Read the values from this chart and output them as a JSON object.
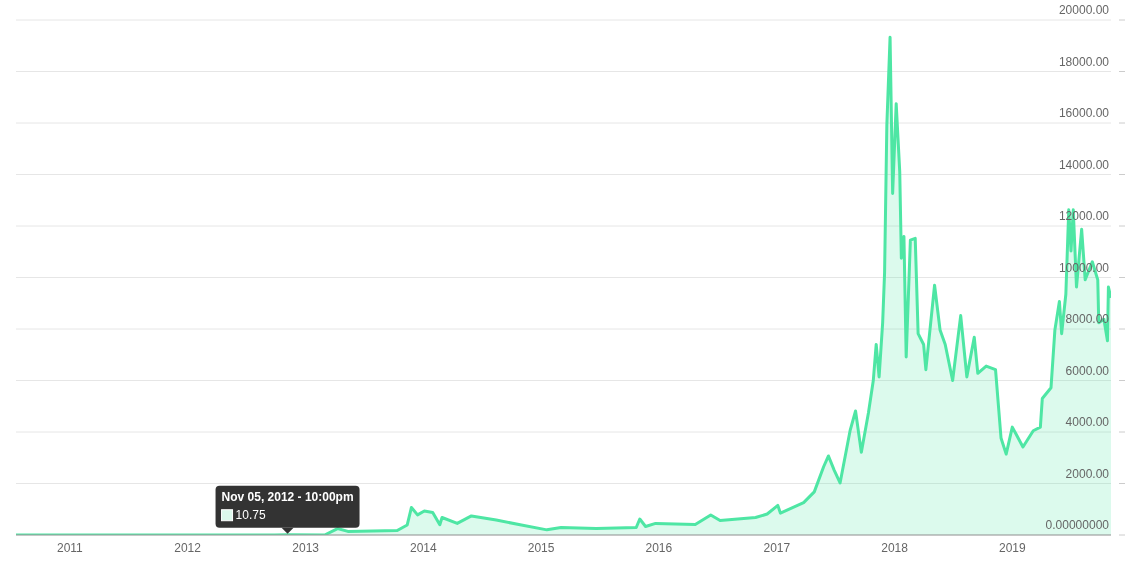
{
  "chart_data": {
    "type": "area",
    "x": [
      "2010-07-18",
      "2011-06-18",
      "2012-02-03",
      "2012-09-27",
      "2012-11-05T22:00",
      "2013-03-01",
      "2013-04-10",
      "2013-05-12",
      "2013-10-12",
      "2013-11-12",
      "2013-11-25",
      "2013-12-14",
      "2014-01-04",
      "2014-01-30",
      "2014-02-21",
      "2014-02-28",
      "2014-04-16",
      "2014-05-30",
      "2014-08-15",
      "2014-11-01",
      "2015-01-19",
      "2015-03-04",
      "2015-06-21",
      "2015-10-23",
      "2015-11-03",
      "2015-11-21",
      "2015-12-22",
      "2016-04-23",
      "2016-06-10",
      "2016-07-09",
      "2016-10-27",
      "2016-12-02",
      "2017-01-04",
      "2017-01-12",
      "2017-03-25",
      "2017-04-27",
      "2017-05-26",
      "2017-06-10",
      "2017-06-28",
      "2017-07-16",
      "2017-08-16",
      "2017-09-02",
      "2017-09-20",
      "2017-10-12",
      "2017-10-27",
      "2017-11-05",
      "2017-11-14",
      "2017-11-25",
      "2017-12-01",
      "2017-12-08",
      "2017-12-18",
      "2017-12-26",
      "2018-01-06",
      "2018-01-17",
      "2018-01-22",
      "2018-01-30",
      "2018-02-06",
      "2018-02-19",
      "2018-03-06",
      "2018-03-15",
      "2018-04-01",
      "2018-04-08",
      "2018-05-05",
      "2018-05-22",
      "2018-06-07",
      "2018-06-30",
      "2018-07-25",
      "2018-08-13",
      "2018-09-05",
      "2018-09-16",
      "2018-10-12",
      "2018-11-10",
      "2018-11-27",
      "2018-12-13",
      "2019-01-01",
      "2019-02-03",
      "2019-03-07",
      "2019-03-29",
      "2019-04-04",
      "2019-05-01",
      "2019-05-13",
      "2019-05-27",
      "2019-06-03",
      "2019-06-16",
      "2019-06-25",
      "2019-07-02",
      "2019-07-09",
      "2019-07-19",
      "2019-08-04",
      "2019-08-15",
      "2019-09-06",
      "2019-09-23",
      "2019-09-26",
      "2019-10-12",
      "2019-10-23",
      "2019-10-26",
      "2019-11-03"
    ],
    "series": [
      {
        "color": "#4ee6a4",
        "values": [
          0,
          0,
          0,
          0,
          10.75,
          0,
          250,
          140,
          175,
          390,
          1070,
          780,
          930,
          870,
          400,
          680,
          450,
          740,
          580,
          390,
          200,
          290,
          250,
          290,
          620,
          330,
          450,
          410,
          780,
          560,
          680,
          815,
          1150,
          850,
          1256,
          1675,
          2650,
          3070,
          2510,
          2020,
          4050,
          4815,
          3210,
          4745,
          6000,
          7400,
          6140,
          8240,
          10190,
          15910,
          19330,
          13260,
          16750,
          14100,
          10750,
          11590,
          6910,
          11450,
          11520,
          7820,
          7400,
          6420,
          9700,
          7960,
          7400,
          6000,
          8520,
          6140,
          7680,
          6280,
          6560,
          6420,
          3770,
          3140,
          4190,
          3420,
          4050,
          4190,
          5300,
          5720,
          7960,
          9070,
          7820,
          9350,
          12630,
          11030,
          12630,
          9630,
          11870,
          9910,
          10610,
          9910,
          8240,
          8380,
          7540,
          9630,
          9210
        ]
      }
    ],
    "xlim": [
      "2010-07-18",
      "2019-11-03"
    ],
    "xticks": [
      "2011",
      "2012",
      "2013",
      "2014",
      "2015",
      "2016",
      "2017",
      "2018",
      "2019"
    ],
    "ylim": [
      0,
      20000
    ],
    "yticks": [
      {
        "value": 0,
        "label": "0.00000000"
      },
      {
        "value": 2000,
        "label": "2000.00"
      },
      {
        "value": 4000,
        "label": "4000.00"
      },
      {
        "value": 6000,
        "label": "6000.00"
      },
      {
        "value": 8000,
        "label": "8000.00"
      },
      {
        "value": 10000,
        "label": "10000.00"
      },
      {
        "value": 12000,
        "label": "12000.00"
      },
      {
        "value": 14000,
        "label": "14000.00"
      },
      {
        "value": 16000,
        "label": "16000.00"
      },
      {
        "value": 18000,
        "label": "18000.00"
      },
      {
        "value": 20000,
        "label": "20000.00"
      }
    ],
    "grid": "y",
    "annotations": [
      {
        "text": "Nov 05, 2012 - 10:00pm",
        "x": "2012-11-05T22:00",
        "y": 10.75
      },
      {
        "text": "10.75",
        "x": "2012-11-05T22:00",
        "y": 10.75
      }
    ]
  }
}
